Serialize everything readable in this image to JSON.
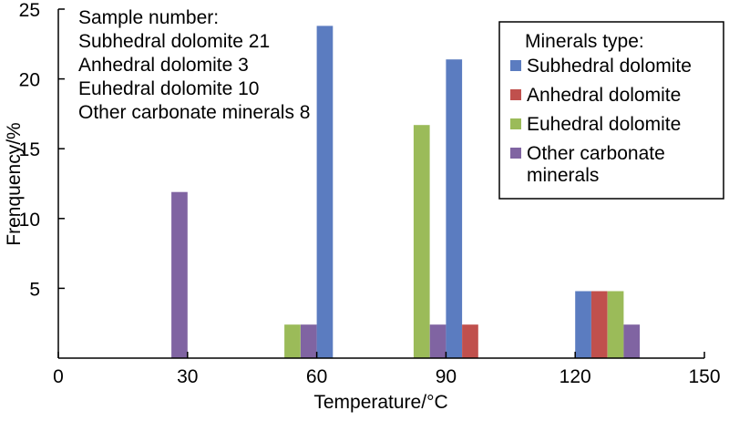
{
  "chart_data": {
    "type": "bar",
    "xlabel": "Temperature/°C",
    "ylabel": "Frenquency/%",
    "xlim": [
      0,
      150
    ],
    "ylim": [
      0,
      25
    ],
    "xticks": [
      "0",
      "30",
      "60",
      "90",
      "120",
      "150"
    ],
    "yticks": [
      "5",
      "10",
      "15",
      "20",
      "25"
    ],
    "grid": false,
    "bin_width": 15,
    "bins": [
      [
        0,
        15
      ],
      [
        15,
        30
      ],
      [
        30,
        45
      ],
      [
        45,
        60
      ],
      [
        60,
        75
      ],
      [
        75,
        90
      ],
      [
        90,
        105
      ],
      [
        105,
        120
      ],
      [
        120,
        135
      ],
      [
        135,
        150
      ]
    ],
    "series": [
      {
        "name": "Subhedral dolomite",
        "color": "#5b7cc0",
        "values": [
          0,
          0,
          0,
          0,
          23.8,
          0,
          21.4,
          0,
          4.8,
          0
        ]
      },
      {
        "name": "Anhedral dolomite",
        "color": "#c0504d",
        "values": [
          0,
          0,
          0,
          0,
          0,
          0,
          2.4,
          0,
          4.8,
          0
        ]
      },
      {
        "name": "Euhedral dolomite",
        "color": "#9bbb59",
        "values": [
          0,
          0,
          0,
          2.4,
          0,
          16.7,
          0,
          0,
          4.8,
          0
        ]
      },
      {
        "name": "Other carbonate minerals",
        "color": "#8064a2",
        "values": [
          0,
          11.9,
          0,
          2.4,
          0,
          2.4,
          0,
          0,
          2.4,
          0
        ]
      }
    ],
    "legend_position": "top-right"
  },
  "annotation": {
    "lines": [
      "Sample number:",
      "Subhedral dolomite 21",
      "Anhedral dolomite 3",
      "Euhedral dolomite 10",
      "Other carbonate minerals 8"
    ]
  },
  "legend": {
    "title": "Minerals type:",
    "items": [
      {
        "label_lines": [
          "Subhedral dolomite"
        ],
        "color": "#5b7cc0"
      },
      {
        "label_lines": [
          "Anhedral dolomite"
        ],
        "color": "#c0504d"
      },
      {
        "label_lines": [
          "Euhedral dolomite"
        ],
        "color": "#9bbb59"
      },
      {
        "label_lines": [
          "Other carbonate",
          "minerals"
        ],
        "color": "#8064a2"
      }
    ]
  }
}
